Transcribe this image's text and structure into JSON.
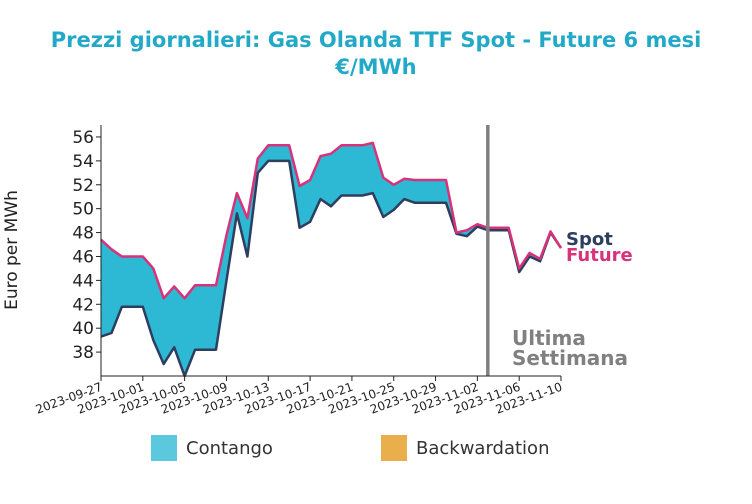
{
  "chart_data": {
    "type": "area",
    "title_line1": "Prezzi giornalieri: Gas Olanda TTF Spot - Future 6 mesi",
    "title_line2": "€/MWh",
    "xlabel": "",
    "ylabel": "Euro per MWh",
    "ylim": [
      36,
      57
    ],
    "yticks": [
      38,
      40,
      42,
      44,
      46,
      48,
      50,
      52,
      54,
      56
    ],
    "xticks": [
      "2023-09-27",
      "2023-10-01",
      "2023-10-05",
      "2023-10-09",
      "2023-10-13",
      "2023-10-17",
      "2023-10-21",
      "2023-10-25",
      "2023-10-29",
      "2023-11-02",
      "2023-11-06",
      "2023-11-10"
    ],
    "x": [
      "2023-09-27",
      "2023-09-28",
      "2023-09-29",
      "2023-09-30",
      "2023-10-01",
      "2023-10-02",
      "2023-10-03",
      "2023-10-04",
      "2023-10-05",
      "2023-10-06",
      "2023-10-07",
      "2023-10-08",
      "2023-10-09",
      "2023-10-10",
      "2023-10-11",
      "2023-10-12",
      "2023-10-13",
      "2023-10-14",
      "2023-10-15",
      "2023-10-16",
      "2023-10-17",
      "2023-10-18",
      "2023-10-19",
      "2023-10-20",
      "2023-10-21",
      "2023-10-22",
      "2023-10-23",
      "2023-10-24",
      "2023-10-25",
      "2023-10-26",
      "2023-10-27",
      "2023-10-28",
      "2023-10-29",
      "2023-10-30",
      "2023-10-31",
      "2023-11-01",
      "2023-11-02",
      "2023-11-03",
      "2023-11-04",
      "2023-11-05",
      "2023-11-06",
      "2023-11-07",
      "2023-11-08",
      "2023-11-09",
      "2023-11-10"
    ],
    "series": [
      {
        "name": "Spot",
        "color": "#2d3e5e",
        "values": [
          39.3,
          39.6,
          41.8,
          41.8,
          41.8,
          39.0,
          37.0,
          38.4,
          36.0,
          38.2,
          38.2,
          38.2,
          44.0,
          49.6,
          46.0,
          53.0,
          54.0,
          54.0,
          54.0,
          48.4,
          48.9,
          50.8,
          50.2,
          51.1,
          51.1,
          51.1,
          51.3,
          49.3,
          49.9,
          50.8,
          50.5,
          50.5,
          50.5,
          50.5,
          47.9,
          47.7,
          48.5,
          48.2,
          48.2,
          48.2,
          44.7,
          46.0,
          45.6,
          48.0,
          46.7
        ]
      },
      {
        "name": "Future",
        "color": "#d6337a",
        "values": [
          47.4,
          46.6,
          46.0,
          46.0,
          46.0,
          45.0,
          42.5,
          43.5,
          42.5,
          43.6,
          43.6,
          43.6,
          47.8,
          51.3,
          49.2,
          54.2,
          55.3,
          55.3,
          55.3,
          51.9,
          52.4,
          54.4,
          54.6,
          55.3,
          55.3,
          55.3,
          55.5,
          52.6,
          52.0,
          52.5,
          52.4,
          52.4,
          52.4,
          52.4,
          48.0,
          48.2,
          48.7,
          48.4,
          48.4,
          48.4,
          45.0,
          46.3,
          45.8,
          48.1,
          46.7
        ]
      }
    ],
    "vline_x": "2023-11-03",
    "vline_label_1": "Ultima",
    "vline_label_2": "Settimana",
    "legend": [
      {
        "label": "Contango",
        "color": "#5bc8de"
      },
      {
        "label": "Backwardation",
        "color": "#eaae4c"
      }
    ],
    "fill_color": "#2db8d4",
    "title_color": "#23a9c8",
    "vline_color": "#808080"
  }
}
